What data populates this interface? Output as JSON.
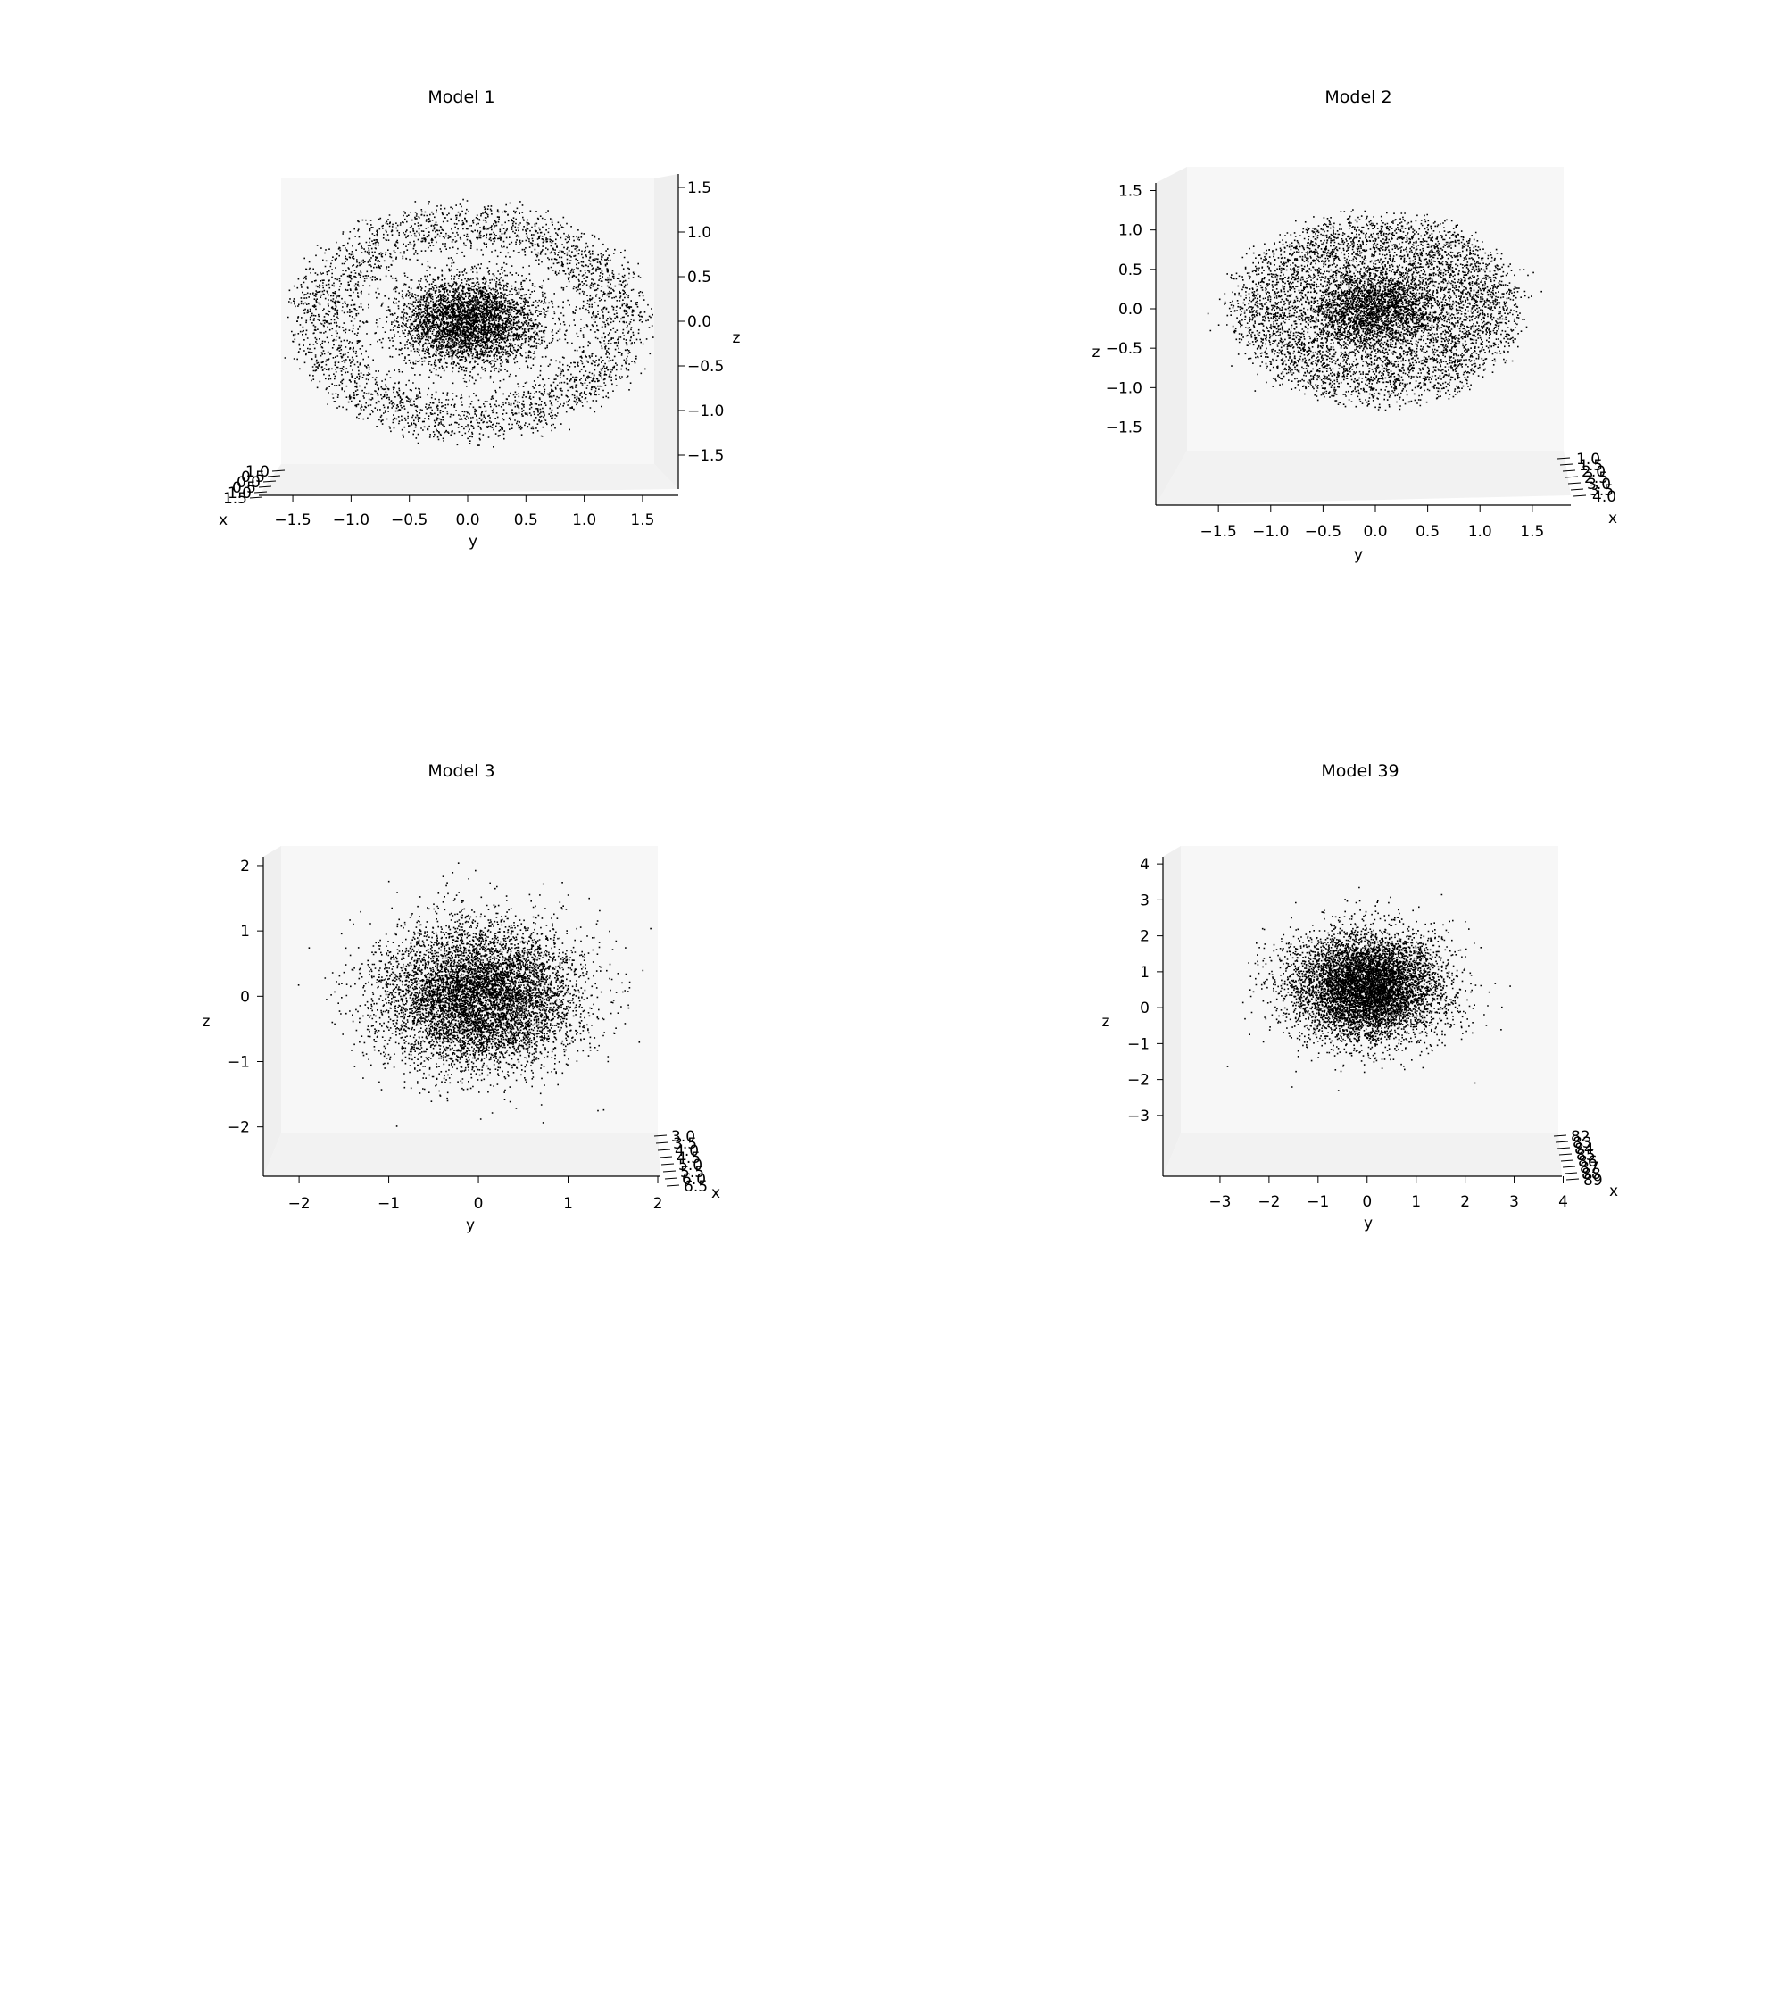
{
  "chart_data": [
    {
      "type": "scatter",
      "title": "Model 1",
      "xlabel": "x",
      "ylabel": "y",
      "zlabel": "z",
      "y_ticks": [
        "−1.5",
        "−1.0",
        "−0.5",
        "0.0",
        "0.5",
        "1.0",
        "1.5"
      ],
      "y_tick_values": [
        -1.5,
        -1.0,
        -0.5,
        0.0,
        0.5,
        1.0,
        1.5
      ],
      "z_ticks": [
        "1.5",
        "1.0",
        "0.5",
        "0.0",
        "−0.5",
        "−1.0",
        "−1.5"
      ],
      "z_tick_values": [
        1.5,
        1.0,
        0.5,
        0.0,
        -0.5,
        -1.0,
        -1.5
      ],
      "x_ticks": [
        "1.0",
        "0.5",
        "0.0",
        "0.5",
        "1.0",
        "1.5"
      ],
      "ylim": [
        -1.6,
        1.6
      ],
      "zlim": [
        -1.6,
        1.6
      ],
      "z_axis_side": "right",
      "view": "y-z plane (elevation ~0)",
      "points": {
        "distribution": "dense core + ring",
        "core_sigma": 0.25,
        "ring_radius": 1.15,
        "ring_width": 0.35,
        "count": 7000
      },
      "marker_color": "#000000"
    },
    {
      "type": "scatter",
      "title": "Model 2",
      "xlabel": "x",
      "ylabel": "y",
      "zlabel": "z",
      "y_ticks": [
        "−1.5",
        "−1.0",
        "−0.5",
        "0.0",
        "0.5",
        "1.0",
        "1.5"
      ],
      "y_tick_values": [
        -1.5,
        -1.0,
        -0.5,
        0.0,
        0.5,
        1.0,
        1.5
      ],
      "z_ticks": [
        "1.5",
        "1.0",
        "0.5",
        "0.0",
        "−0.5",
        "−1.0",
        "−1.5"
      ],
      "z_tick_values": [
        1.5,
        1.0,
        0.5,
        0.0,
        -0.5,
        -1.0,
        -1.5
      ],
      "x_ticks": [
        "1.0",
        "1.5",
        "2.0",
        "2.5",
        "3.0",
        "3.5",
        "4.0"
      ],
      "ylim": [
        -1.8,
        1.8
      ],
      "zlim": [
        -1.8,
        1.8
      ],
      "z_axis_side": "left",
      "view": "y-z plane (elevation ~0)",
      "points": {
        "distribution": "dense core + ring",
        "core_sigma": 0.33,
        "ring_radius": 1.0,
        "ring_width": 0.4,
        "count": 7500
      },
      "marker_color": "#000000"
    },
    {
      "type": "scatter",
      "title": "Model 3",
      "xlabel": "x",
      "ylabel": "y",
      "zlabel": "z",
      "y_ticks": [
        "−2",
        "−1",
        "0",
        "1",
        "2"
      ],
      "y_tick_values": [
        -2,
        -1,
        0,
        1,
        2
      ],
      "z_ticks": [
        "2",
        "1",
        "0",
        "−1",
        "−2"
      ],
      "z_tick_values": [
        2,
        1,
        0,
        -1,
        -2
      ],
      "x_ticks": [
        "3.0",
        "3.5",
        "4.0",
        "4.5",
        "5.0",
        "5.5",
        "6.0",
        "6.5"
      ],
      "ylim": [
        -2.2,
        2.0
      ],
      "zlim": [
        -2.1,
        2.3
      ],
      "z_axis_side": "left",
      "view": "y-z plane (elevation ~0)",
      "points": {
        "distribution": "gaussian",
        "sigma": 0.55,
        "count": 7000
      },
      "marker_color": "#000000"
    },
    {
      "type": "scatter",
      "title": "Model 39",
      "xlabel": "x",
      "ylabel": "y",
      "zlabel": "z",
      "y_ticks": [
        "−3",
        "−2",
        "−1",
        "0",
        "1",
        "2",
        "3",
        "4"
      ],
      "y_tick_values": [
        -3,
        -2,
        -1,
        0,
        1,
        2,
        3,
        4
      ],
      "z_ticks": [
        "4",
        "3",
        "2",
        "1",
        "0",
        "−1",
        "−2",
        "−3"
      ],
      "z_tick_values": [
        4,
        3,
        2,
        1,
        0,
        -1,
        -2,
        -3
      ],
      "x_ticks": [
        "82",
        "83",
        "84",
        "85",
        "86",
        "87",
        "88",
        "89"
      ],
      "ylim": [
        -3.8,
        3.9
      ],
      "zlim": [
        -3.5,
        4.5
      ],
      "z_axis_side": "left",
      "view": "y-z plane (elevation ~0)",
      "points": {
        "distribution": "gaussian",
        "sigma": 0.75,
        "center_z": 0.6,
        "count": 7000
      },
      "marker_color": "#000000"
    }
  ]
}
